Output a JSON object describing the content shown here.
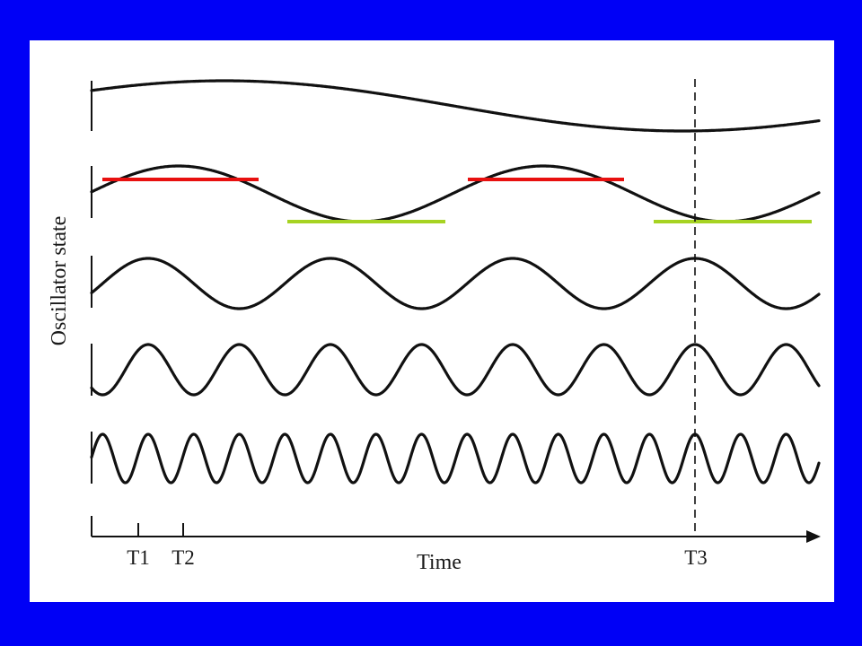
{
  "colors": {
    "background": "#0000f6",
    "panel": "#ffffff",
    "ink": "#111111",
    "peak_marker": "#e8100f",
    "trough_marker": "#a6d322"
  },
  "labels": {
    "y_axis": "Oscillator state",
    "x_axis": "Time",
    "t1": "T1",
    "t2": "T2",
    "t3": "T3"
  },
  "oscillators": [
    {
      "cycles_shown": 1.05
    },
    {
      "cycles_shown": 2
    },
    {
      "cycles_shown": 4
    },
    {
      "cycles_shown": 8
    },
    {
      "cycles_shown": 16
    }
  ],
  "markers": {
    "peak_bars": 2,
    "trough_bars": 2
  }
}
